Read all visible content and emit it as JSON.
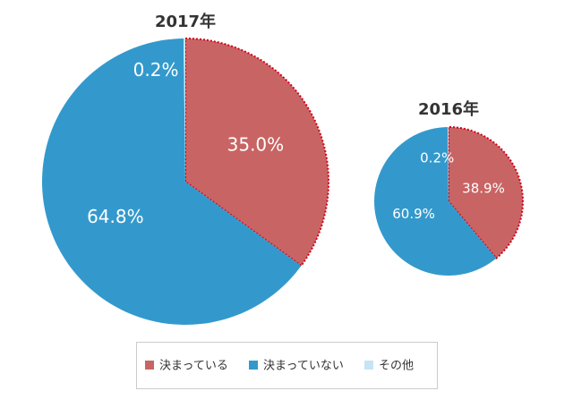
{
  "chart_data": [
    {
      "type": "pie",
      "title": "2017年",
      "values": [
        35.0,
        64.8,
        0.2
      ],
      "value_labels": [
        "35.0%",
        "64.8%",
        "0.2%"
      ],
      "colors": [
        "#c96464",
        "#3399cc",
        "#c5e4f5"
      ]
    },
    {
      "type": "pie",
      "title": "2016年",
      "values": [
        38.9,
        60.9,
        0.2
      ],
      "value_labels": [
        "38.9%",
        "60.9%",
        "0.2%"
      ],
      "colors": [
        "#c96464",
        "#3399cc",
        "#c5e4f5"
      ]
    }
  ],
  "legend": {
    "items": [
      "決まっている",
      "決まっていない",
      "その他"
    ]
  }
}
